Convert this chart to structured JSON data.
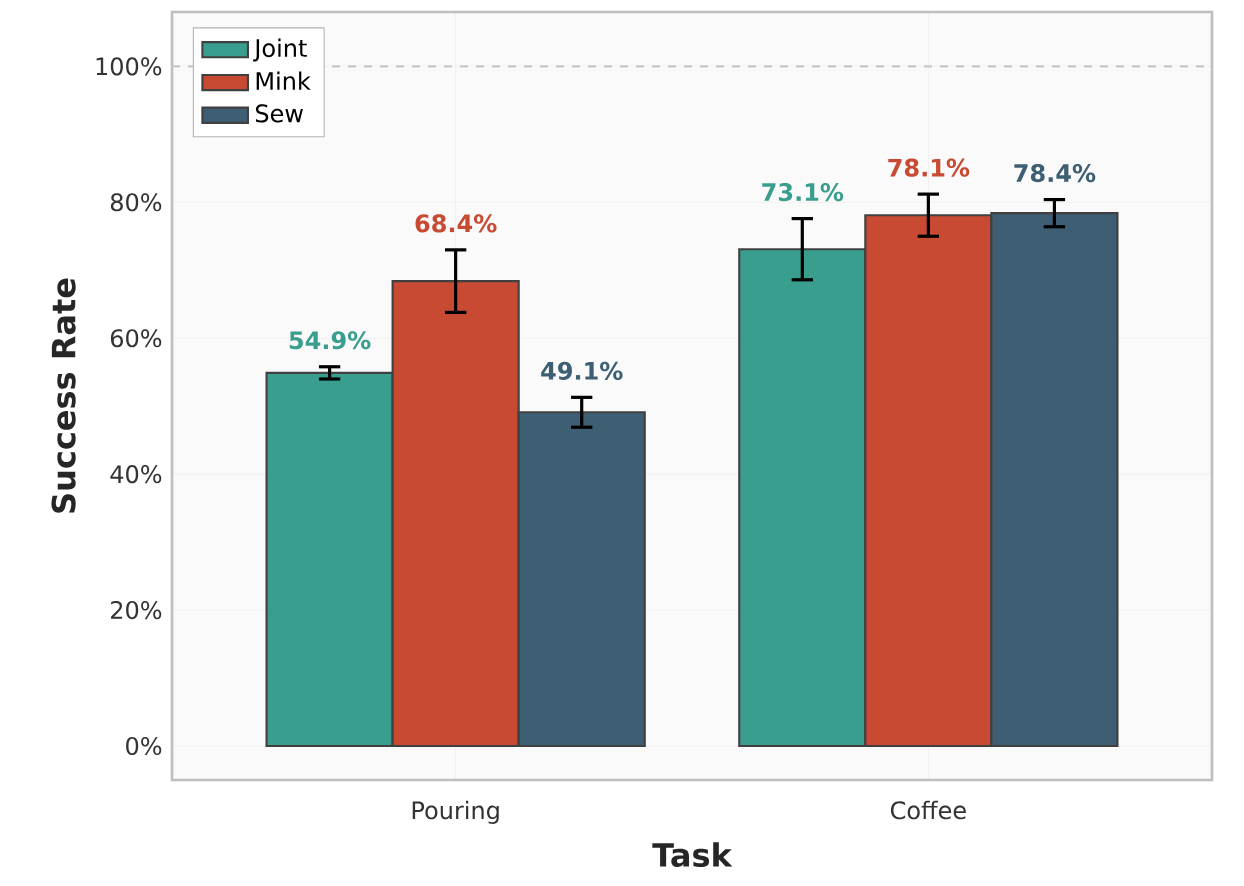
{
  "chart_data": {
    "type": "bar",
    "xlabel": "Task",
    "ylabel": "Success Rate",
    "categories": [
      "Pouring",
      "Coffee"
    ],
    "series": [
      {
        "name": "Joint",
        "color": "#3a9e8f",
        "values": [
          54.9,
          73.1
        ],
        "errors": [
          0.9,
          4.5
        ],
        "value_labels": [
          "54.9%",
          "73.1%"
        ]
      },
      {
        "name": "Mink",
        "color": "#c84a32",
        "values": [
          68.4,
          78.1
        ],
        "errors": [
          4.6,
          3.1
        ],
        "value_labels": [
          "68.4%",
          "78.1%"
        ]
      },
      {
        "name": "Sew",
        "color": "#3e5f73",
        "values": [
          49.1,
          78.4
        ],
        "errors": [
          2.2,
          2.0
        ],
        "value_labels": [
          "49.1%",
          "78.4%"
        ]
      }
    ],
    "ylim": [
      -5,
      108
    ],
    "yticks": [
      {
        "value": 0,
        "label": "0%"
      },
      {
        "value": 20,
        "label": "20%"
      },
      {
        "value": 40,
        "label": "40%"
      },
      {
        "value": 60,
        "label": "60%"
      },
      {
        "value": 80,
        "label": "80%"
      },
      {
        "value": 100,
        "label": "100%"
      }
    ],
    "ref_lines": [
      {
        "axis": "y",
        "value": 100,
        "color": "#c8c8c8",
        "line_style": "dashed"
      }
    ],
    "grid": true,
    "legend": "top left"
  }
}
